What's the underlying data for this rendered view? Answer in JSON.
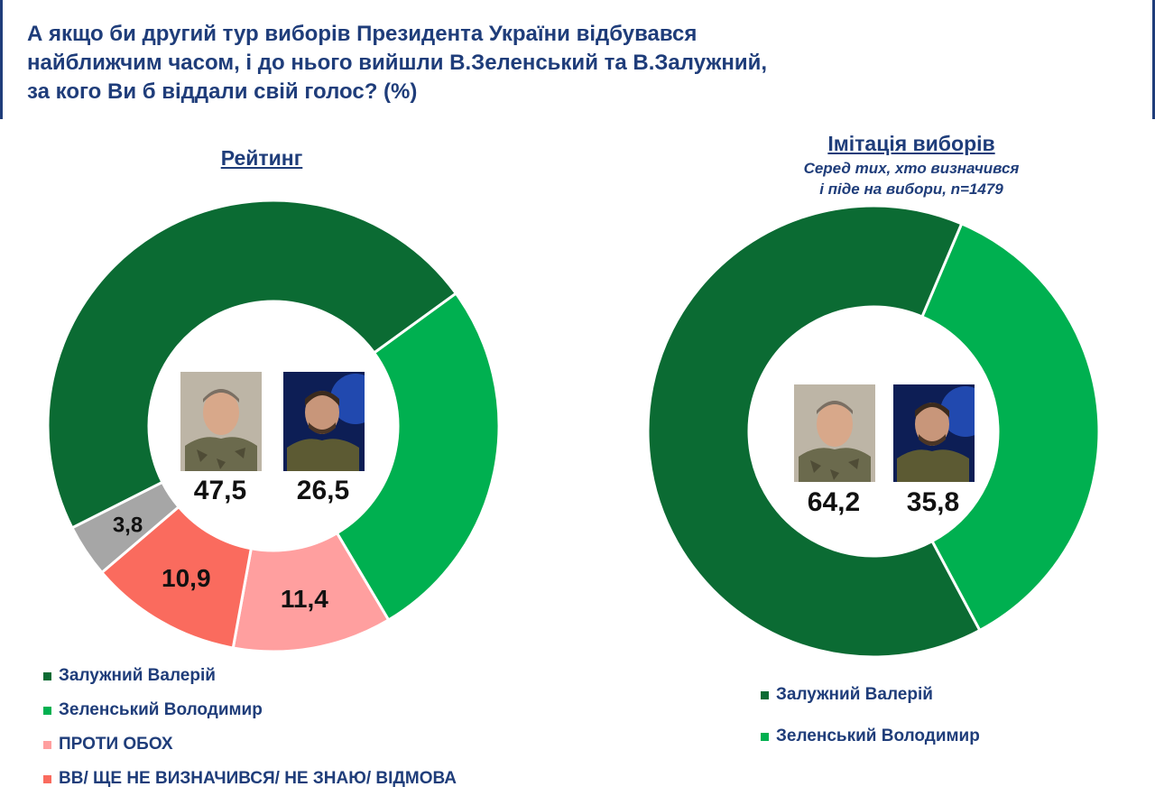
{
  "title": {
    "line1": "А якщо би другий тур виборів Президента України відбувався",
    "line2": "найближчим часом, і до нього вийшли В.Зеленський та В.Залужний,",
    "line3": "за кого Ви б віддали свій голос? (%)"
  },
  "colors": {
    "zaluzhnyi": "#0b6b33",
    "zelenskyi": "#00b050",
    "against": "#ff9f9f",
    "undecided": "#fa6b5e",
    "other": "#a6a6a6",
    "text": "#1f3d7a"
  },
  "chart_data": [
    {
      "type": "pie",
      "title": "Рейтинг",
      "subtitle": "",
      "categories": [
        "Залужний Валерій",
        "Зеленський Володимир",
        "ПРОТИ ОБОХ",
        "ВВ/ ЩЕ НЕ ВИЗНАЧИВСЯ/ НЕ ЗНАЮ/ ВІДМОВА",
        ""
      ],
      "values": [
        47.5,
        26.5,
        11.4,
        10.9,
        3.8
      ],
      "value_labels": [
        "47,5",
        "26,5",
        "11,4",
        "10,9",
        "3,8"
      ],
      "legend": [
        "Залужний Валерій",
        "Зеленський Володимир",
        "ПРОТИ ОБОХ",
        "ВВ/ ЩЕ НЕ ВИЗНАЧИВСЯ/ НЕ ЗНАЮ/ ВІДМОВА"
      ],
      "legend_placement": "bottom-left"
    },
    {
      "type": "pie",
      "title": "Імітація виборів",
      "subtitle_line1": "Серед тих, хто визначився",
      "subtitle_line2": "і піде на вибори, n=1479",
      "categories": [
        "Залужний Валерій",
        "Зеленський Володимир"
      ],
      "values": [
        64.2,
        35.8
      ],
      "value_labels": [
        "64,2",
        "35,8"
      ],
      "legend": [
        "Залужний Валерій",
        "Зеленський Володимир"
      ],
      "legend_placement": "bottom-left"
    }
  ]
}
